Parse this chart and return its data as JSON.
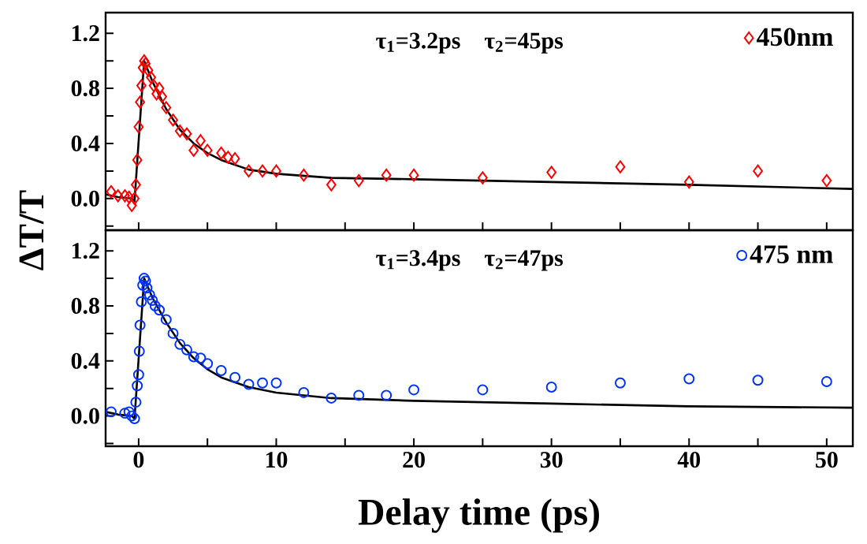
{
  "chart_data": [
    {
      "type": "scatter",
      "ylabel": "ΔT/T",
      "annotations": [
        "τ$_{1}$=3.2ps",
        "τ$_{2}$=45ps"
      ],
      "xlim": [
        -2.4,
        51.9
      ],
      "ylim": [
        -0.23,
        1.35
      ],
      "xticks": [
        0,
        5,
        10,
        15,
        20,
        25,
        30,
        35,
        40,
        45,
        50
      ],
      "yticks": [
        {
          "value": -0.2,
          "label": null
        },
        {
          "value": 0,
          "label": "0.0"
        },
        {
          "value": 0.2,
          "label": null
        },
        {
          "value": 0.4,
          "label": "0.4"
        },
        {
          "value": 0.6,
          "label": null
        },
        {
          "value": 0.8,
          "label": "0.8"
        },
        {
          "value": 1.0,
          "label": null
        },
        {
          "value": 1.2,
          "label": "1.2"
        }
      ],
      "tick_labels": "y",
      "legend": "top right",
      "grid": false,
      "series": [
        {
          "name": "450nm",
          "color": "#ff0000",
          "marker": "diamond",
          "x": [
            -2,
            -1.5,
            -1,
            -0.7,
            -0.5,
            -0.3,
            -0.2,
            -0.1,
            0,
            0.1,
            0.2,
            0.3,
            0.4,
            0.5,
            0.7,
            0.9,
            1.1,
            1.3,
            1.5,
            1.7,
            2,
            2.5,
            3,
            3.5,
            4,
            4.5,
            5,
            6,
            6.5,
            7,
            8,
            9,
            10,
            12,
            14,
            16,
            18,
            20,
            25,
            30,
            35,
            40,
            45,
            50
          ],
          "values": [
            0.05,
            0.02,
            0.02,
            0.01,
            -0.05,
            0.0,
            0.1,
            0.28,
            0.52,
            0.7,
            0.82,
            0.95,
            1.0,
            0.98,
            0.93,
            0.88,
            0.82,
            0.76,
            0.8,
            0.74,
            0.66,
            0.57,
            0.49,
            0.47,
            0.35,
            0.42,
            0.35,
            0.33,
            0.3,
            0.29,
            0.2,
            0.2,
            0.2,
            0.17,
            0.1,
            0.13,
            0.17,
            0.17,
            0.15,
            0.19,
            0.23,
            0.12,
            0.2,
            0.13
          ]
        },
        {
          "type": "line",
          "color": "#000000",
          "marker": "none",
          "line_style": "solid",
          "x": [
            -2.4,
            -1.5,
            -0.5,
            -0.3,
            0.4,
            1,
            2,
            3,
            4,
            5,
            6,
            8,
            10,
            14,
            20,
            30,
            40,
            51.9
          ],
          "values": [
            0.03,
            0.01,
            0.0,
            -0.02,
            1.0,
            0.85,
            0.65,
            0.5,
            0.4,
            0.33,
            0.28,
            0.21,
            0.18,
            0.15,
            0.14,
            0.12,
            0.1,
            0.07
          ]
        }
      ]
    },
    {
      "type": "scatter",
      "xlabel": "Delay time (ps)",
      "annotations": [
        "τ$_{1}$=3.4ps",
        "τ$_{2}$=47ps"
      ],
      "xlim": [
        -2.4,
        51.9
      ],
      "ylim": [
        -0.22,
        1.35
      ],
      "xticks": [
        {
          "value": 0,
          "label": "0"
        },
        {
          "value": 5,
          "label": null
        },
        {
          "value": 10,
          "label": "10"
        },
        {
          "value": 15,
          "label": null
        },
        {
          "value": 20,
          "label": "20"
        },
        {
          "value": 25,
          "label": null
        },
        {
          "value": 30,
          "label": "30"
        },
        {
          "value": 35,
          "label": null
        },
        {
          "value": 40,
          "label": "40"
        },
        {
          "value": 45,
          "label": null
        },
        {
          "value": 50,
          "label": "50"
        }
      ],
      "yticks": [
        {
          "value": -0.2,
          "label": null
        },
        {
          "value": 0,
          "label": "0.0"
        },
        {
          "value": 0.2,
          "label": null
        },
        {
          "value": 0.4,
          "label": "0.4"
        },
        {
          "value": 0.6,
          "label": null
        },
        {
          "value": 0.8,
          "label": "0.8"
        },
        {
          "value": 1.0,
          "label": null
        },
        {
          "value": 1.2,
          "label": "1.2"
        }
      ],
      "legend": "top right",
      "grid": false,
      "series": [
        {
          "name": "475 nm",
          "color": "#0033ff",
          "marker": "circle",
          "x": [
            -2,
            -1,
            -0.7,
            -0.5,
            -0.3,
            -0.2,
            -0.1,
            0,
            0.05,
            0.1,
            0.2,
            0.3,
            0.4,
            0.5,
            0.6,
            0.8,
            1.0,
            1.2,
            1.5,
            2,
            2.5,
            3,
            3.5,
            4,
            4.5,
            5,
            6,
            7,
            8,
            9,
            10,
            12,
            14,
            16,
            18,
            20,
            25,
            30,
            35,
            40,
            45,
            50
          ],
          "values": [
            0.03,
            0.02,
            0.03,
            0.0,
            -0.02,
            0.1,
            0.22,
            0.3,
            0.47,
            0.66,
            0.83,
            0.95,
            1.0,
            0.98,
            0.93,
            0.88,
            0.84,
            0.8,
            0.77,
            0.7,
            0.6,
            0.52,
            0.48,
            0.43,
            0.42,
            0.38,
            0.33,
            0.28,
            0.23,
            0.24,
            0.24,
            0.17,
            0.13,
            0.15,
            0.15,
            0.19,
            0.19,
            0.21,
            0.24,
            0.27,
            0.26,
            0.25
          ]
        },
        {
          "type": "line",
          "color": "#000000",
          "marker": "none",
          "line_style": "solid",
          "x": [
            -2.4,
            -1.5,
            -0.5,
            -0.3,
            0.4,
            1,
            2,
            3,
            4,
            5,
            6,
            8,
            10,
            14,
            20,
            30,
            40,
            51.9
          ],
          "values": [
            0.03,
            0.01,
            0.0,
            -0.02,
            1.0,
            0.86,
            0.68,
            0.53,
            0.42,
            0.34,
            0.28,
            0.21,
            0.17,
            0.13,
            0.11,
            0.09,
            0.07,
            0.06
          ]
        }
      ]
    }
  ]
}
